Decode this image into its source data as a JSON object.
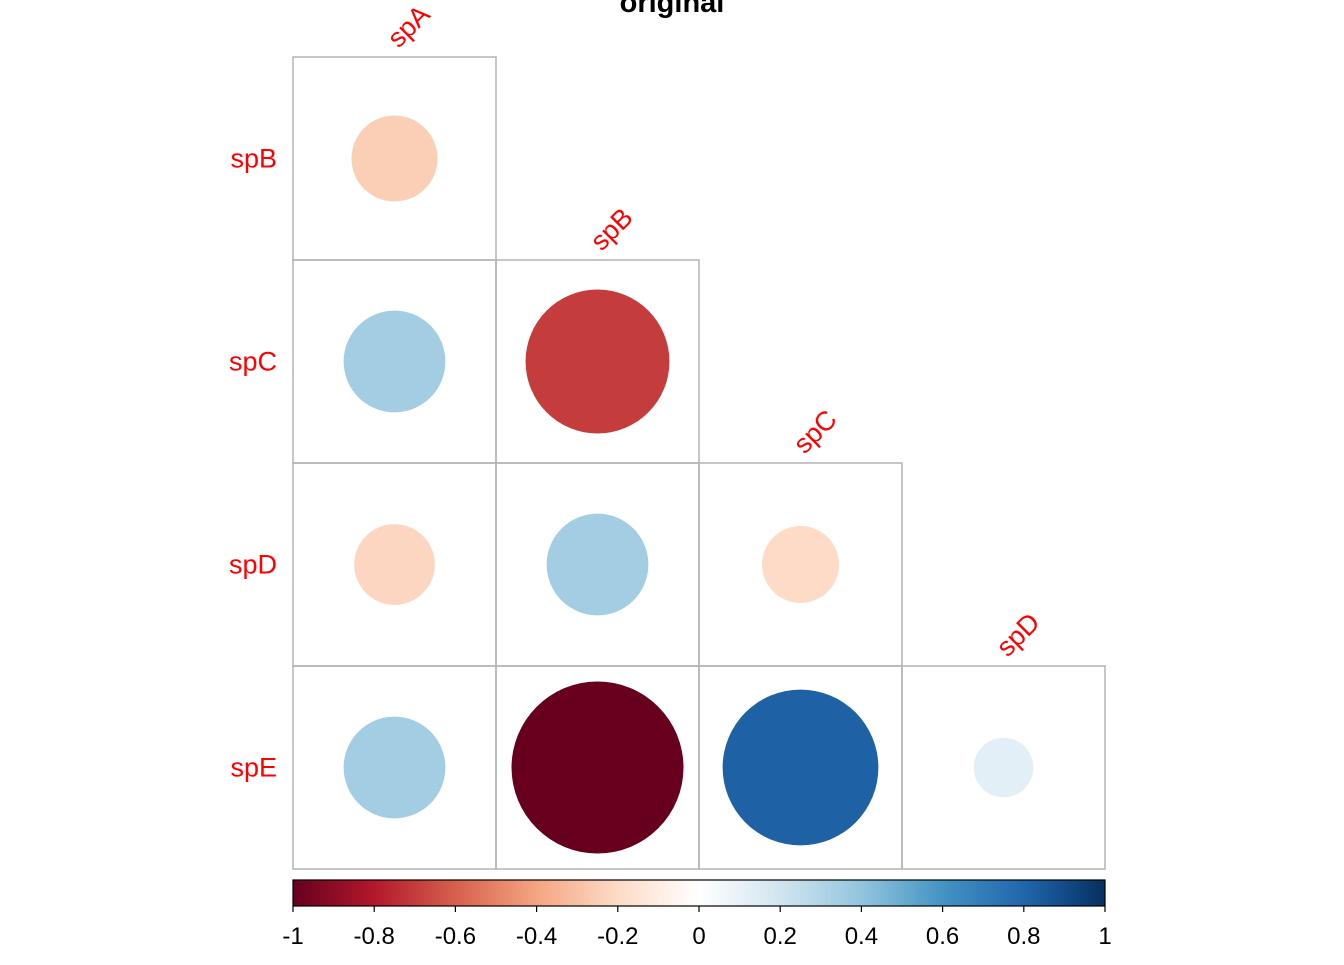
{
  "chart_data": {
    "type": "heatmap",
    "subtype": "correlation-matrix-lower-triangle",
    "glyph": "circle",
    "title": "original",
    "row_labels": [
      "spB",
      "spC",
      "spD",
      "spE"
    ],
    "col_labels": [
      "spA",
      "spB",
      "spC",
      "spD"
    ],
    "label_color": "#ff0000",
    "values": [
      [
        -0.25,
        null,
        null,
        null
      ],
      [
        0.35,
        -0.7,
        null,
        null
      ],
      [
        -0.22,
        0.35,
        -0.2,
        null
      ],
      [
        0.35,
        -1.0,
        0.82,
        0.12
      ]
    ],
    "colorbar": {
      "min": -1,
      "max": 1,
      "ticks": [
        -1,
        -0.8,
        -0.6,
        -0.4,
        -0.2,
        0,
        0.2,
        0.4,
        0.6,
        0.8,
        1
      ],
      "tick_labels": [
        "-1",
        "-0.8",
        "-0.6",
        "-0.4",
        "-0.2",
        "0",
        "0.2",
        "0.4",
        "0.6",
        "0.8",
        "1"
      ],
      "colors": [
        "#67001f",
        "#b2182b",
        "#d6604d",
        "#f4a582",
        "#fddbc7",
        "#ffffff",
        "#d1e5f0",
        "#92c5de",
        "#4393c3",
        "#2166ac",
        "#053061"
      ]
    },
    "grid": true,
    "legend": "bottom"
  }
}
